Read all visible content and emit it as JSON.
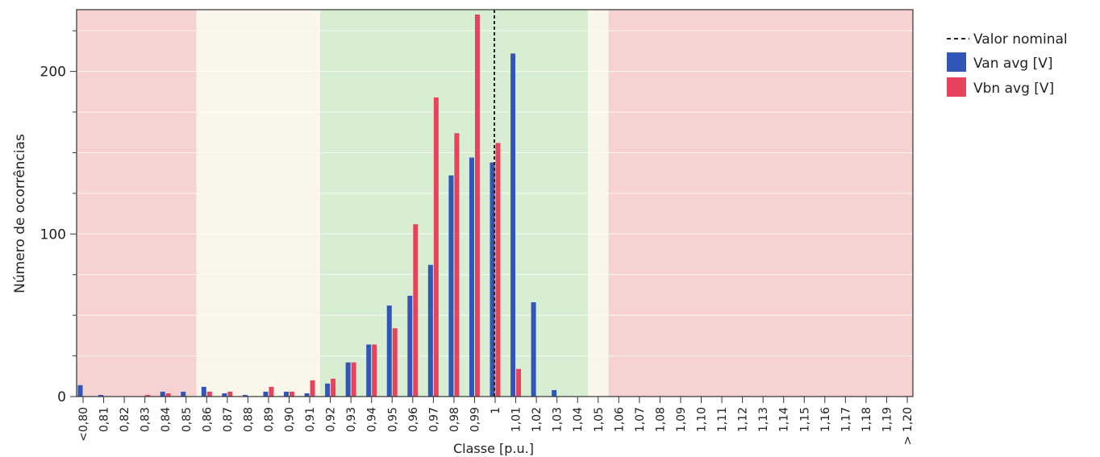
{
  "chart_data": {
    "type": "bar",
    "title": "",
    "xlabel": "Classe [p.u.]",
    "ylabel": "Número de ocorrências",
    "ylim": [
      0,
      235
    ],
    "yticks": [
      0,
      100,
      200
    ],
    "grid": true,
    "legend_position": "right",
    "categories": [
      "<0,80",
      "0,81",
      "0,82",
      "0,83",
      "0,84",
      "0,85",
      "0,86",
      "0,87",
      "0,88",
      "0,89",
      "0,90",
      "0,91",
      "0,92",
      "0,93",
      "0,94",
      "0,95",
      "0,96",
      "0,97",
      "0,98",
      "0,99",
      "1",
      "1,01",
      "1,02",
      "1,03",
      "1,04",
      "1,05",
      "1,06",
      "1,07",
      "1,08",
      "1,09",
      "1,10",
      "1,11",
      "1,12",
      "1,13",
      "1,14",
      "1,15",
      "1,16",
      "1,17",
      "1,18",
      "1,19",
      "> 1,20"
    ],
    "series": [
      {
        "name": "Van avg [V]",
        "color": "#2f56b8",
        "values": [
          7,
          1,
          0,
          0,
          3,
          3,
          6,
          2,
          1,
          3,
          3,
          2,
          8,
          21,
          32,
          56,
          62,
          81,
          136,
          147,
          144,
          211,
          58,
          4,
          0,
          0,
          0,
          0,
          0,
          0,
          0,
          0,
          0,
          0,
          0,
          0,
          0,
          0,
          0,
          0,
          0
        ]
      },
      {
        "name": "Vbn avg [V]",
        "color": "#e8435d",
        "values": [
          0,
          0,
          0,
          1,
          2,
          0,
          3,
          3,
          0,
          6,
          3,
          10,
          11,
          21,
          32,
          42,
          106,
          184,
          162,
          235,
          156,
          17,
          0,
          0,
          0,
          0,
          0,
          0,
          0,
          0,
          0,
          0,
          0,
          0,
          0,
          0,
          0,
          0,
          0,
          0,
          0
        ]
      }
    ],
    "nominal_line": {
      "name": "Valor nominal",
      "category": "1",
      "color": "#222222",
      "style": "dashed"
    },
    "bands": [
      {
        "from_category": "<0,80",
        "to_category": "0,85",
        "color": "#f6d3d1"
      },
      {
        "from_category": "0,86",
        "to_category": "0,91",
        "color": "#fbf6ea"
      },
      {
        "from_category": "0,92",
        "to_category": "1,04",
        "color": "#d8eed2"
      },
      {
        "from_category": "1,05",
        "to_category": "1,05",
        "color": "#fbf6ea"
      },
      {
        "from_category": "1,06",
        "to_category": "> 1,20",
        "color": "#f6d3d1"
      }
    ]
  }
}
